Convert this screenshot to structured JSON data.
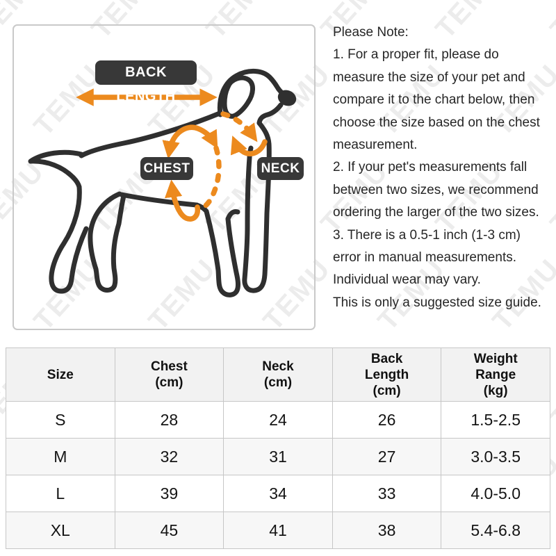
{
  "watermark": {
    "text": "TEMU"
  },
  "diagram": {
    "back_length_label": "BACK LENGTH",
    "chest_label": "CHEST",
    "neck_label": "NECK",
    "accent_color": "#EC8A1E",
    "outline_color": "#2F2F2F",
    "label_bg_color": "#383838"
  },
  "note": {
    "lines": [
      "Please Note:",
      "1. For a proper fit, please do",
      "measure the size of your pet and",
      "compare it to the chart below, then",
      "choose the size based on the chest",
      "measurement.",
      "2. If your pet's measurements fall",
      "between two sizes, we recommend",
      "ordering the larger of the two sizes.",
      "3. There is a 0.5-1 inch (1-3 cm)",
      "error in manual measurements.",
      "Individual wear may vary.",
      "This is only a suggested size guide."
    ]
  },
  "table": {
    "headers": [
      "Size",
      "Chest\n(cm)",
      "Neck\n(cm)",
      "Back\nLength\n(cm)",
      "Weight\nRange\n(kg)"
    ],
    "rows": [
      [
        "S",
        "28",
        "24",
        "26",
        "1.5-2.5"
      ],
      [
        "M",
        "32",
        "31",
        "27",
        "3.0-3.5"
      ],
      [
        "L",
        "39",
        "34",
        "33",
        "4.0-5.0"
      ],
      [
        "XL",
        "45",
        "41",
        "38",
        "5.4-6.8"
      ]
    ]
  }
}
